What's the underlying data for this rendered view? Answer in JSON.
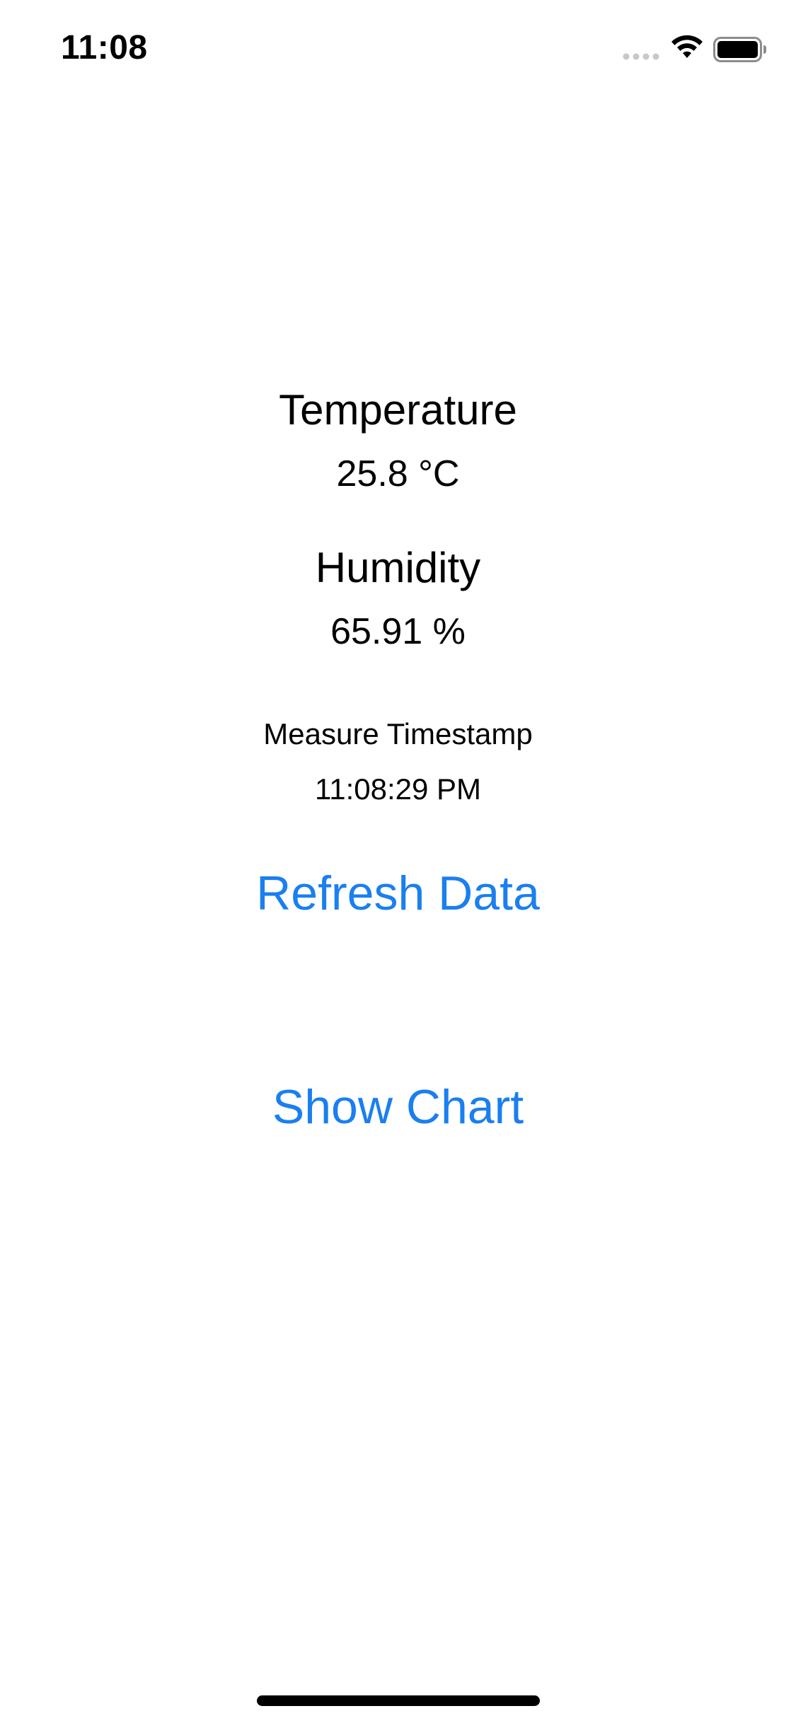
{
  "status_bar": {
    "time": "11:08",
    "icons": [
      "cellular-signal-icon",
      "wifi-icon",
      "battery-icon"
    ]
  },
  "temperature": {
    "title": "Temperature",
    "value": "25.8 °C"
  },
  "humidity": {
    "title": "Humidity",
    "value": "65.91 %"
  },
  "measure_timestamp": {
    "title": "Measure Timestamp",
    "value": "11:08:29 PM"
  },
  "actions": {
    "refresh_label": "Refresh Data",
    "show_chart_label": "Show Chart"
  },
  "colors": {
    "accent": "#1a7ff0",
    "text": "#000000",
    "background": "#ffffff"
  }
}
